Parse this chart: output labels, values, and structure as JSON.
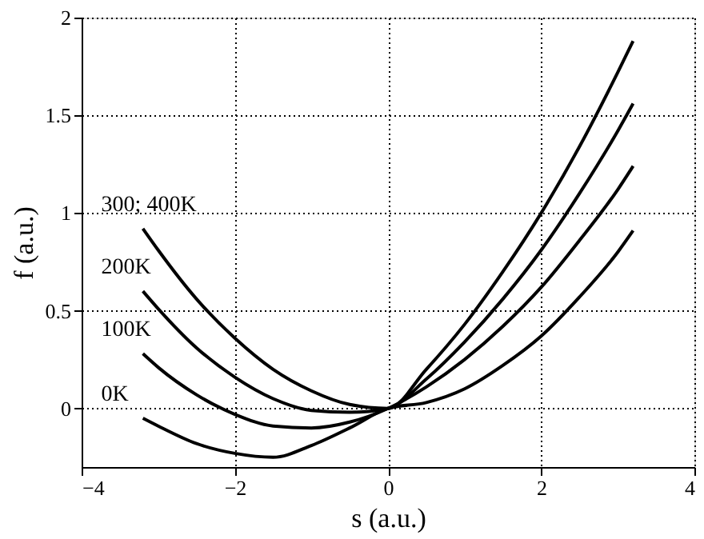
{
  "chart_data": {
    "type": "line",
    "xlabel": "s (a.u.)",
    "ylabel": "f (a.u.)",
    "xlim": [
      -4,
      4
    ],
    "xticks": [
      -4,
      -2,
      0,
      2,
      4
    ],
    "ylim": [
      -0.3,
      2
    ],
    "yticks": [
      0,
      0.5,
      1,
      1.5,
      2
    ],
    "grid": true,
    "legend": false,
    "marker": "none",
    "line_style": "solid",
    "x": [
      -3.2,
      -3,
      -2.5,
      -2,
      -1.5,
      -1,
      -0.5,
      0,
      0.5,
      1,
      1.5,
      2,
      2.5,
      3,
      3.2
    ],
    "series": [
      {
        "name": "0K",
        "color": "#000000",
        "values": [
          -0.05,
          -0.09,
          -0.18,
          -0.23,
          -0.25,
          -0.19,
          -0.1,
          0,
          0.03,
          0.1,
          0.22,
          0.37,
          0.57,
          0.8,
          0.91
        ]
      },
      {
        "name": "100K",
        "color": "#000000",
        "values": [
          0.28,
          0.21,
          0.07,
          -0.03,
          -0.09,
          -0.1,
          -0.07,
          0,
          0.11,
          0.25,
          0.42,
          0.62,
          0.86,
          1.12,
          1.24
        ]
      },
      {
        "name": "200K",
        "color": "#000000",
        "values": [
          0.6,
          0.51,
          0.31,
          0.16,
          0.05,
          -0.01,
          -0.02,
          0,
          0.15,
          0.34,
          0.56,
          0.81,
          1.1,
          1.42,
          1.56
        ]
      },
      {
        "name": "300; 400K",
        "color": "#000000",
        "values": [
          0.92,
          0.81,
          0.56,
          0.36,
          0.2,
          0.09,
          0.02,
          0,
          0.2,
          0.43,
          0.7,
          1.0,
          1.34,
          1.72,
          1.88
        ]
      }
    ]
  }
}
